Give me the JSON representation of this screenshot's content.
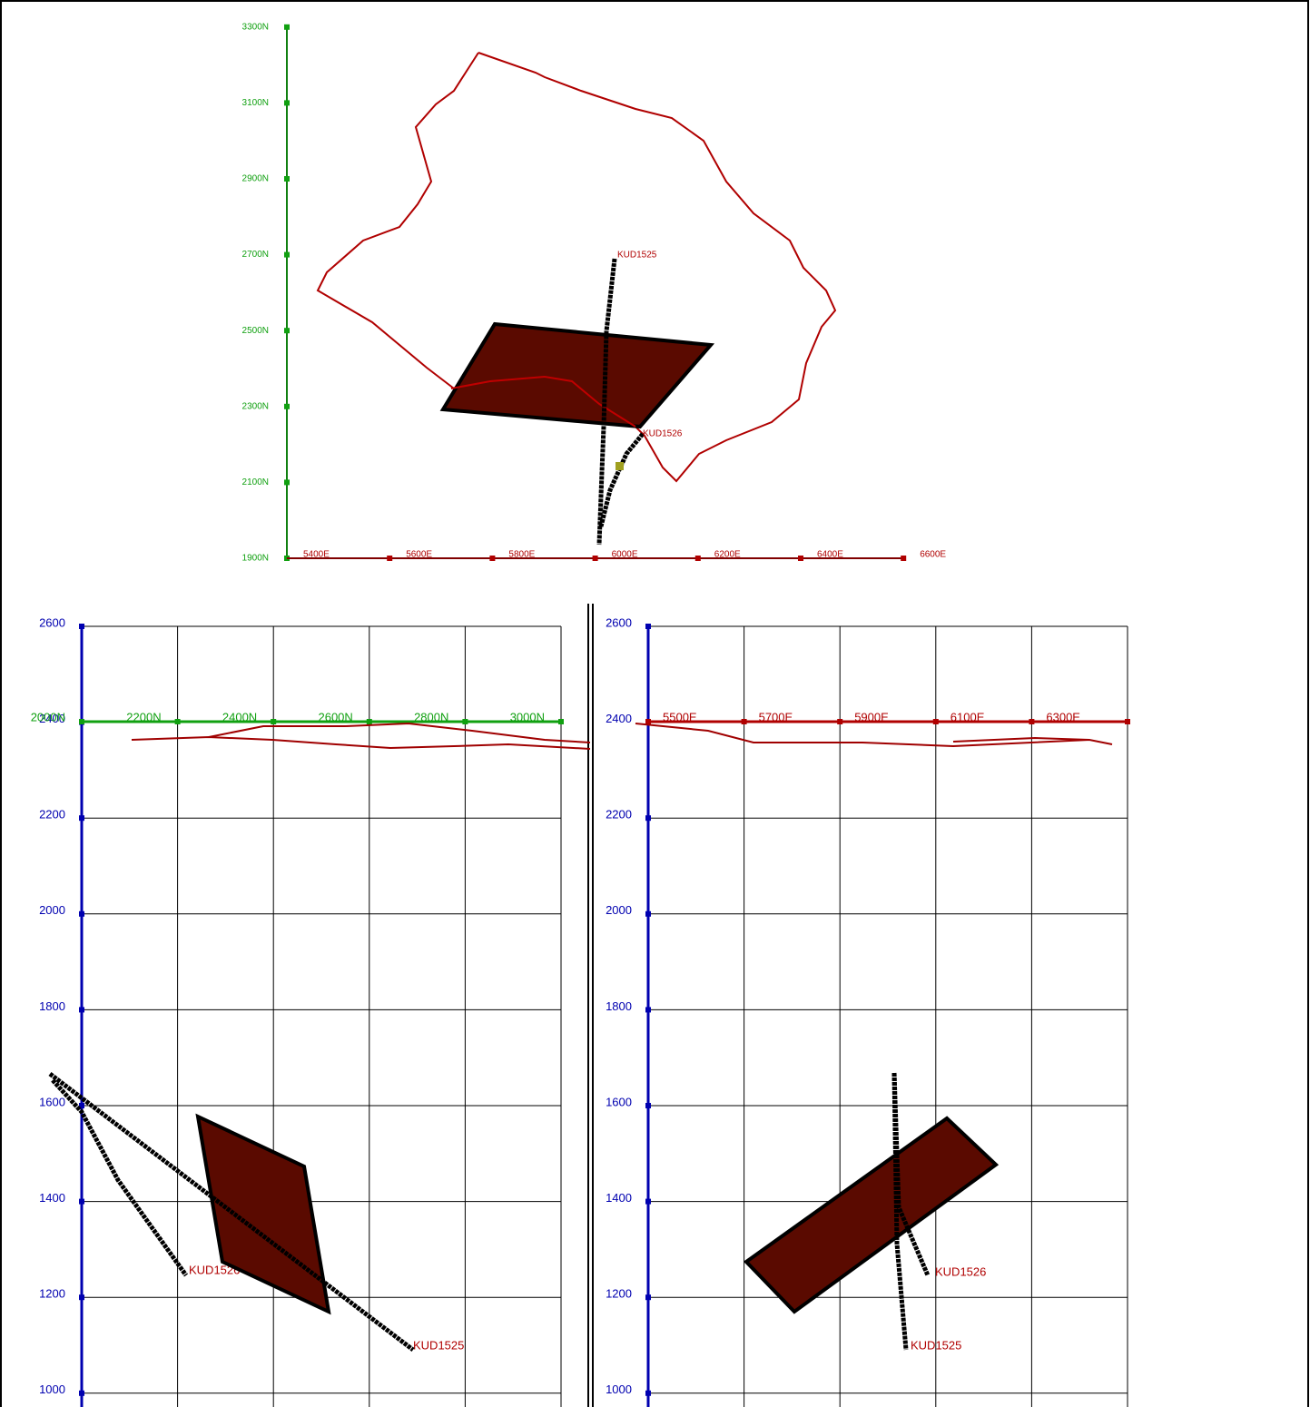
{
  "plan": {
    "northing_labels": [
      "1900N",
      "2100N",
      "2300N",
      "2500N",
      "2700N",
      "2900N",
      "3100N",
      "3300N"
    ],
    "easting_labels": [
      "5400E",
      "5600E",
      "5800E",
      "6000E",
      "6200E",
      "6400E",
      "6600E"
    ],
    "holes": [
      "KUD1525",
      "KUD1526"
    ]
  },
  "long_section": {
    "elevation_labels": [
      "2600",
      "2400",
      "2200",
      "2000",
      "1800",
      "1600",
      "1400",
      "1200",
      "1000"
    ],
    "northing_labels": [
      "2000N",
      "2200N",
      "2400N",
      "2600N",
      "2800N",
      "3000N"
    ],
    "holes": [
      "KUD1525",
      "KUD1526"
    ]
  },
  "cross_section": {
    "elevation_labels": [
      "2600",
      "2400",
      "2200",
      "2000",
      "1800",
      "1600",
      "1400",
      "1200",
      "1000"
    ],
    "easting_labels": [
      "5500E",
      "5700E",
      "5900E",
      "6100E",
      "6300E"
    ],
    "holes": [
      "KUD1525",
      "KUD1526"
    ]
  }
}
